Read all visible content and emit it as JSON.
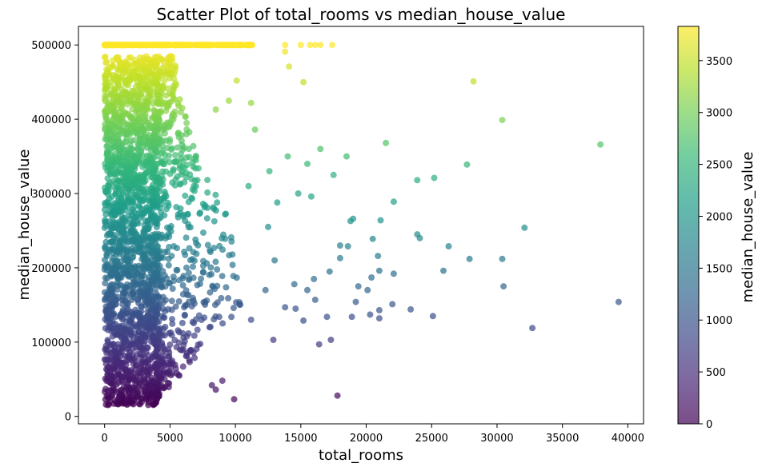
{
  "chart_data": {
    "type": "scatter",
    "title": "Scatter Plot of total_rooms vs median_house_value",
    "xlabel": "total_rooms",
    "ylabel": "median_house_value",
    "xlim": [
      -2000,
      41200
    ],
    "ylim": [
      -10000,
      525000
    ],
    "x_ticks": [
      0,
      5000,
      10000,
      15000,
      20000,
      25000,
      30000,
      35000,
      40000
    ],
    "y_ticks": [
      0,
      100000,
      200000,
      300000,
      400000,
      500000
    ],
    "grid": false,
    "colormap": "viridis",
    "alpha": 0.7,
    "colorbar": {
      "label": "median_house_value",
      "range": [
        0,
        3830
      ],
      "ticks": [
        0,
        500,
        1000,
        1500,
        2000,
        2500,
        3000,
        3500
      ]
    },
    "points": [
      [
        28200,
        451000
      ],
      [
        30400,
        399000
      ],
      [
        37900,
        366000
      ],
      [
        21500,
        368000
      ],
      [
        27700,
        339000
      ],
      [
        25200,
        321000
      ],
      [
        23900,
        318000
      ],
      [
        22100,
        289000
      ],
      [
        32100,
        254000
      ],
      [
        23900,
        245000
      ],
      [
        24100,
        240000
      ],
      [
        20500,
        239000
      ],
      [
        26300,
        229000
      ],
      [
        27900,
        212000
      ],
      [
        30400,
        212000
      ],
      [
        20900,
        216000
      ],
      [
        25900,
        196000
      ],
      [
        21000,
        196000
      ],
      [
        22100,
        192000
      ],
      [
        20400,
        187000
      ],
      [
        30500,
        175000
      ],
      [
        20100,
        170000
      ],
      [
        39300,
        154000
      ],
      [
        22000,
        151000
      ],
      [
        23400,
        144000
      ],
      [
        21000,
        143000
      ],
      [
        20300,
        137000
      ],
      [
        25100,
        135000
      ],
      [
        21000,
        132000
      ],
      [
        32700,
        119000
      ],
      [
        17800,
        28000
      ],
      [
        9900,
        23000
      ],
      [
        8200,
        42000
      ],
      [
        8500,
        36000
      ],
      [
        9000,
        48000
      ],
      [
        15200,
        450000
      ],
      [
        14100,
        471000
      ],
      [
        13800,
        491000
      ],
      [
        10100,
        452000
      ],
      [
        18800,
        263000
      ],
      [
        19000,
        266000
      ],
      [
        21100,
        264000
      ],
      [
        18000,
        230000
      ],
      [
        18600,
        229000
      ],
      [
        19200,
        154000
      ],
      [
        18900,
        134000
      ],
      [
        17000,
        134000
      ],
      [
        16400,
        97000
      ],
      [
        17300,
        103000
      ],
      [
        16100,
        157000
      ],
      [
        15500,
        170000
      ],
      [
        14500,
        178000
      ],
      [
        13000,
        210000
      ],
      [
        12500,
        255000
      ],
      [
        11000,
        310000
      ],
      [
        12600,
        330000
      ],
      [
        14000,
        350000
      ],
      [
        15500,
        340000
      ],
      [
        17500,
        325000
      ],
      [
        18500,
        350000
      ],
      [
        16500,
        360000
      ],
      [
        11500,
        386000
      ],
      [
        11200,
        422000
      ],
      [
        9500,
        425000
      ],
      [
        8500,
        413000
      ],
      [
        12300,
        170000
      ],
      [
        13800,
        147000
      ],
      [
        11200,
        130000
      ],
      [
        12900,
        103000
      ],
      [
        14600,
        145000
      ],
      [
        15200,
        129000
      ],
      [
        16000,
        185000
      ],
      [
        17200,
        195000
      ],
      [
        18000,
        213000
      ],
      [
        19400,
        175000
      ],
      [
        13200,
        288000
      ],
      [
        14800,
        300000
      ],
      [
        15800,
        296000
      ]
    ]
  }
}
